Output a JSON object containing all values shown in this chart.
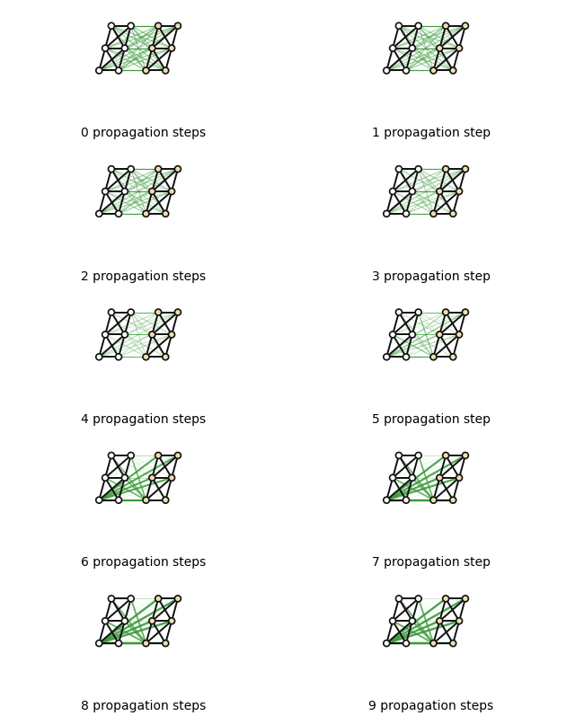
{
  "n_steps": 10,
  "labels": [
    "0 propagation steps",
    "1 propagation step",
    "2 propagation steps",
    "3 propagation step",
    "4 propagation steps",
    "5 propagation step",
    "6 propagation steps",
    "7 propagation step",
    "8 propagation steps",
    "9 propagation steps"
  ],
  "node_color_left": "#ffffff",
  "node_color_right": "#f0deb0",
  "edge_color_black": "#111111",
  "edge_color_green": "#3a9a3a",
  "bg_color": "#ffffff",
  "label_fontsize": 10
}
